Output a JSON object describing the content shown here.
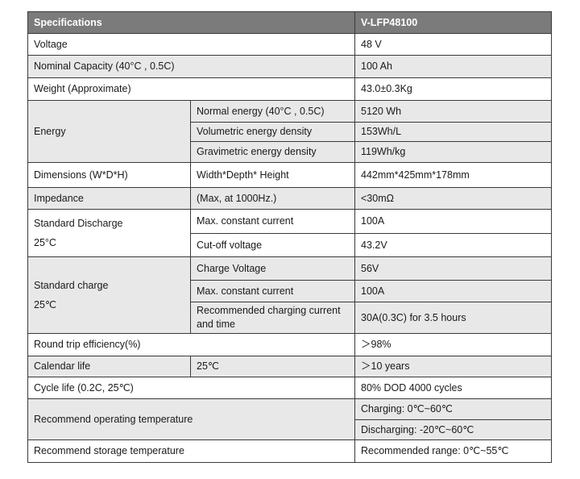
{
  "header": {
    "spec": "Specifications",
    "model": "V-LFP48100"
  },
  "rows": {
    "voltage": {
      "label": "Voltage",
      "value": "48 V"
    },
    "capacity": {
      "label": "Nominal Capacity (40°C , 0.5C)",
      "value": "100 Ah"
    },
    "weight": {
      "label": "Weight (Approximate)",
      "value": "43.0±0.3Kg"
    },
    "energy": {
      "label": "Energy",
      "items": [
        {
          "label": "Normal energy (40°C , 0.5C)",
          "value": "5120 Wh"
        },
        {
          "label": "Volumetric energy density",
          "value": "153Wh/L"
        },
        {
          "label": "Gravimetric energy density",
          "value": "119Wh/kg"
        }
      ]
    },
    "dimensions": {
      "label": "Dimensions (W*D*H)",
      "sub": "Width*Depth* Height",
      "value": "442mm*425mm*178mm"
    },
    "impedance": {
      "label": "Impedance",
      "sub": "(Max, at 1000Hz.)",
      "value": "<30mΩ"
    },
    "discharge": {
      "label": "Standard Discharge",
      "label2": "25°C",
      "items": [
        {
          "label": "Max. constant current",
          "value": "100A"
        },
        {
          "label": "Cut-off voltage",
          "value": "43.2V"
        }
      ]
    },
    "charge": {
      "label": "Standard charge",
      "label2": "25℃",
      "items": [
        {
          "label": "Charge Voltage",
          "value": "56V"
        },
        {
          "label": "Max. constant current",
          "value": "100A"
        },
        {
          "label": "Recommended charging current and time",
          "value": "30A(0.3C) for 3.5 hours"
        }
      ]
    },
    "round_trip": {
      "label": "Round trip efficiency(%)",
      "value": "＞98%"
    },
    "calendar": {
      "label": "Calendar life",
      "sub": "25℃",
      "value": "＞10 years"
    },
    "cycle": {
      "label": "Cycle life (0.2C, 25℃)",
      "value": "80% DOD 4000 cycles"
    },
    "operating": {
      "label": "Recommend operating temperature",
      "values": [
        "Charging: 0℃~60℃",
        "Discharging: -20℃~60℃"
      ]
    },
    "storage": {
      "label": "Recommend storage temperature",
      "value": "Recommended range: 0℃~55℃"
    }
  }
}
